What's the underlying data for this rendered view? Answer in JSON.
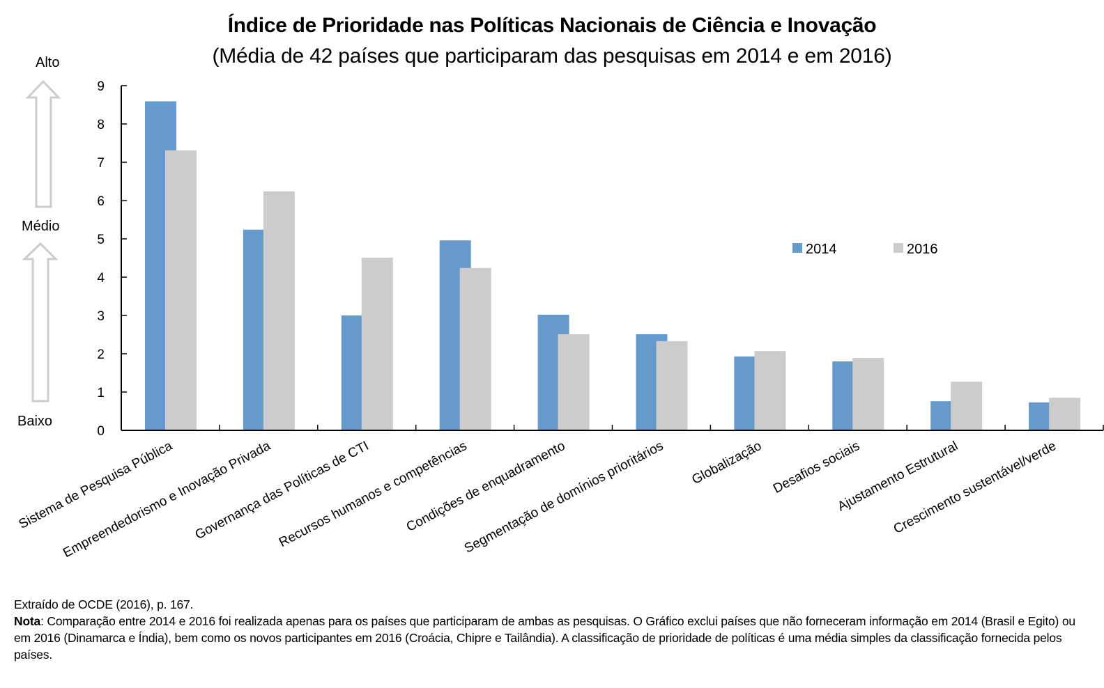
{
  "chart_data": {
    "type": "bar",
    "title": "Índice de Prioridade nas Políticas Nacionais de Ciência e Inovação",
    "subtitle": "(Média de 42 países que participaram das pesquisas em 2014 e em 2016)",
    "xlabel": "",
    "ylabel": "",
    "ylim": [
      0,
      9
    ],
    "yticks": [
      "0",
      "1",
      "2",
      "3",
      "4",
      "5",
      "6",
      "7",
      "8",
      "9"
    ],
    "grid": false,
    "legend_position": "right-middle",
    "categories": [
      "Sistema de Pesquisa Pública",
      "Empreendedorismo e Inovação Privada",
      "Governança das Políticas de CTI",
      "Recursos humanos e competências",
      "Condições de enquadramento",
      "Segmentação de domínios prioritários",
      "Globalização",
      "Desafios sociais",
      "Ajustamento Estrutural",
      "Crescimento sustentável/verde"
    ],
    "series": [
      {
        "name": "2014",
        "color": "#6699cc",
        "values": [
          8.59,
          5.24,
          3.0,
          4.96,
          3.02,
          2.51,
          1.93,
          1.8,
          0.76,
          0.73
        ]
      },
      {
        "name": "2016",
        "color": "#cccccc",
        "values": [
          7.31,
          6.24,
          4.51,
          4.24,
          2.51,
          2.33,
          2.07,
          1.89,
          1.27,
          0.85
        ]
      }
    ],
    "scale_annotations": {
      "high": "Alto",
      "medium": "Médio",
      "low": "Baixo"
    }
  },
  "footer": {
    "source": "Extraído de OCDE (2016), p. 167.",
    "note_label": "Nota",
    "note_text": ": Comparação entre 2014 e 2016 foi realizada apenas para os países que participaram de ambas as pesquisas. O Gráfico exclui países que não forneceram informação em 2014 (Brasil e Egito) ou em 2016 (Dinamarca e Índia), bem como os novos participantes em 2016 (Croácia, Chipre e Tailândia). A classificação de prioridade de políticas é uma média simples da classificação fornecida pelos países."
  }
}
